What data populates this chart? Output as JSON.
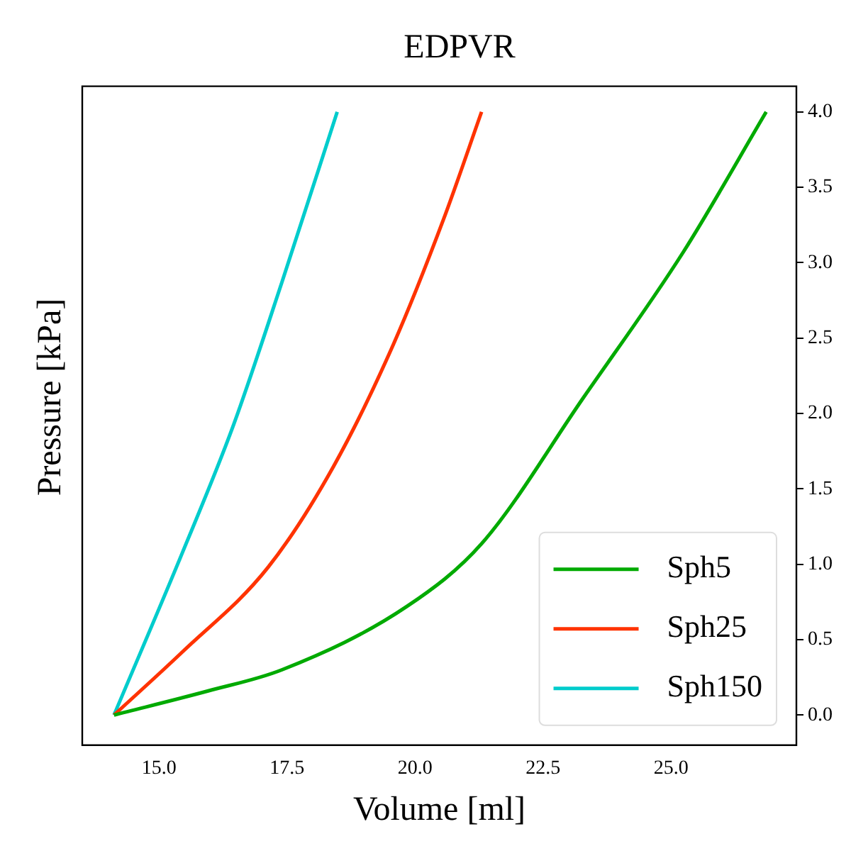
{
  "chart_data": {
    "type": "line",
    "title": "EDPVR",
    "xlabel": "Volume [ml]",
    "ylabel": "Pressure [kPa]",
    "xlim": [
      13.5,
      27.45
    ],
    "xticks": [
      {
        "value": 15,
        "label": "15.0"
      },
      {
        "value": 17.5,
        "label": "17.5"
      },
      {
        "value": 20,
        "label": "20.0"
      },
      {
        "value": 22.5,
        "label": "22.5"
      },
      {
        "value": 25,
        "label": "25.0"
      }
    ],
    "ylim": [
      -0.2,
      4.17
    ],
    "yticks": [
      {
        "value": 0,
        "label": "0.0"
      },
      {
        "value": 0.5,
        "label": "0.5"
      },
      {
        "value": 1,
        "label": "1.0"
      },
      {
        "value": 1.5,
        "label": "1.5"
      },
      {
        "value": 2,
        "label": "2.0"
      },
      {
        "value": 2.5,
        "label": "2.5"
      },
      {
        "value": 3,
        "label": "3.0"
      },
      {
        "value": 3.5,
        "label": "3.5"
      },
      {
        "value": 4,
        "label": "4.0"
      }
    ],
    "grid": false,
    "legend": "bottom right",
    "marker": "none",
    "line_style": "solid",
    "series": [
      {
        "name": "Sph5",
        "color": "#00aa00",
        "x": [
          14.12,
          15.96,
          17.4,
          19.84,
          21.31,
          23.28,
          25.24,
          26.86
        ],
        "values": [
          0,
          0.16,
          0.3,
          0.72,
          1.14,
          2.1,
          3.07,
          4.0
        ]
      },
      {
        "name": "Sph25",
        "color": "#ff3300",
        "x": [
          14.12,
          15.46,
          17.13,
          18.41,
          19.58,
          20.56,
          21.3
        ],
        "values": [
          0,
          0.42,
          0.98,
          1.65,
          2.46,
          3.29,
          4.0
        ]
      },
      {
        "name": "Sph150",
        "color": "#00cccc",
        "x": [
          14.12,
          15.46,
          16.44,
          17.4,
          18.48
        ],
        "values": [
          0,
          1.08,
          1.91,
          2.87,
          4.0
        ]
      }
    ]
  }
}
